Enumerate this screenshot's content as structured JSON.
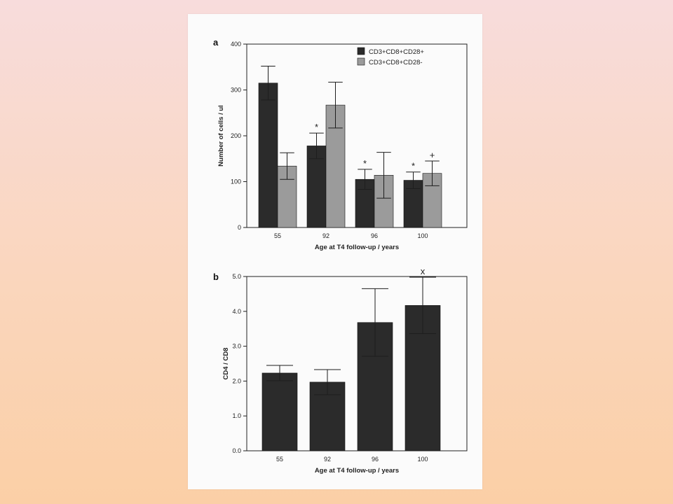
{
  "colors": {
    "dark_bar": "#2b2b2b",
    "light_bar": "#9b9b9b",
    "error_bar": "#1e1e1e",
    "axis": "#222222"
  },
  "chart_data": [
    {
      "panel": "a",
      "type": "bar",
      "categories": [
        "55",
        "92",
        "96",
        "100"
      ],
      "xlabel": "Age at T4 follow-up / years",
      "ylabel": "Number of cells / ul",
      "ylim": [
        0,
        400
      ],
      "yticks": [
        0,
        100,
        200,
        300,
        400
      ],
      "legend_position": "top-right",
      "series": [
        {
          "name": "CD3+CD8+CD28+",
          "values": [
            315,
            178,
            105,
            103
          ],
          "error": [
            37,
            28,
            22,
            18
          ],
          "color": "#2b2b2b"
        },
        {
          "name": "CD3+CD8+CD28-",
          "values": [
            134,
            267,
            114,
            118
          ],
          "error": [
            29,
            50,
            50,
            27
          ],
          "color": "#9b9b9b"
        }
      ],
      "annotations": [
        {
          "series": 0,
          "index": 1,
          "text": "*"
        },
        {
          "series": 0,
          "index": 2,
          "text": "*"
        },
        {
          "series": 0,
          "index": 3,
          "text": "*"
        },
        {
          "series": 1,
          "index": 3,
          "text": "+"
        }
      ]
    },
    {
      "panel": "b",
      "type": "bar",
      "categories": [
        "55",
        "92",
        "96",
        "100"
      ],
      "xlabel": "Age at T4 follow-up / years",
      "ylabel": "CD4 / CD8",
      "ylim": [
        0,
        5
      ],
      "yticks": [
        "0.0",
        "1.0",
        "2.0",
        "3.0",
        "4.0",
        "5.0"
      ],
      "series": [
        {
          "values": [
            2.23,
            1.97,
            3.68,
            4.17
          ],
          "error": [
            0.22,
            0.36,
            0.97,
            0.81
          ],
          "color": "#2b2b2b"
        }
      ],
      "annotations": [
        {
          "series": 0,
          "index": 3,
          "text": "x"
        }
      ]
    }
  ]
}
